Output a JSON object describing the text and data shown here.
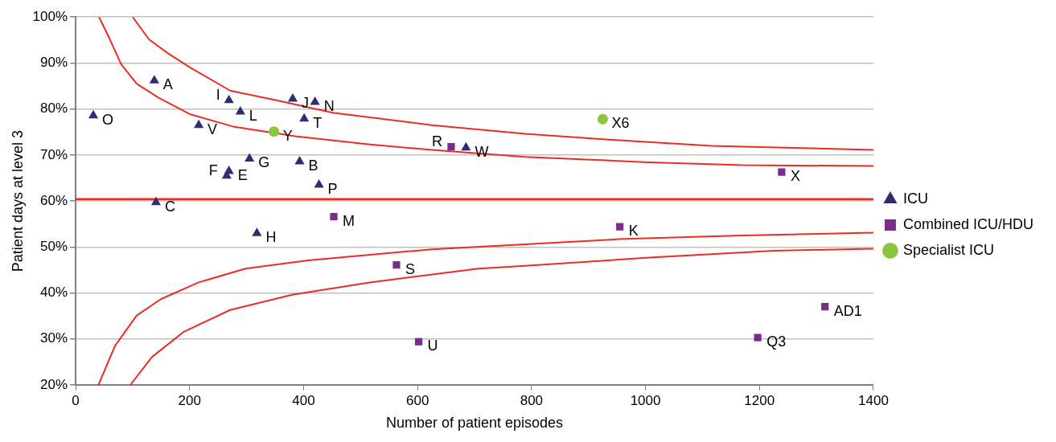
{
  "chart_data": {
    "type": "scatter",
    "xlabel": "Number of patient episodes",
    "ylabel": "Patient days at level 3",
    "xlim": [
      0,
      1400
    ],
    "xticks": [
      0,
      200,
      400,
      600,
      800,
      1000,
      1200,
      1400
    ],
    "ylim": [
      20,
      100
    ],
    "yticks": [
      {
        "value": 20,
        "label": "20%"
      },
      {
        "value": 30,
        "label": "30%"
      },
      {
        "value": 40,
        "label": "40%"
      },
      {
        "value": 50,
        "label": "50%"
      },
      {
        "value": 60,
        "label": "60%"
      },
      {
        "value": 70,
        "label": "70%"
      },
      {
        "value": 80,
        "label": "80%"
      },
      {
        "value": 90,
        "label": "90%"
      },
      {
        "value": 100,
        "label": "100%"
      }
    ],
    "grid": "y",
    "legend": "right",
    "series": [
      {
        "name": "ICU",
        "color": "#2e2d74",
        "marker": "triangle",
        "x": [
          138,
          31,
          269,
          289,
          381,
          420,
          401,
          216,
          305,
          393,
          269,
          265,
          427,
          141,
          318,
          685
        ],
        "values": [
          86.2,
          78.6,
          81.9,
          79.4,
          82.2,
          81.5,
          77.9,
          76.5,
          69.2,
          68.6,
          66.5,
          65.5,
          63.5,
          59.7,
          53,
          71.6
        ]
      },
      {
        "name": "Combined ICU/HDU",
        "color": "#7b2b8b",
        "marker": "square",
        "x": [
          659,
          453,
          563,
          602,
          1239,
          955,
          1315,
          1197
        ],
        "values": [
          71.8,
          56.6,
          46.1,
          29.4,
          66.3,
          54.4,
          37,
          30.3
        ]
      },
      {
        "name": "Specialist ICU",
        "color": "#8cc63f",
        "marker": "circle",
        "x": [
          348,
          925
        ],
        "values": [
          75.1,
          77.8
        ]
      },
      {
        "type": "line",
        "color": "#ee2b24",
        "marker": "none",
        "x": [
          100,
          129,
          162,
          200,
          271,
          352,
          451,
          625,
          789,
          953,
          1116,
          1400
        ],
        "values": [
          100,
          95.1,
          92.1,
          89.1,
          84,
          81.9,
          79.2,
          76.5,
          74.6,
          73.2,
          72,
          71.1
        ]
      },
      {
        "type": "line",
        "color": "#ee2b24",
        "marker": "none",
        "x": [
          41,
          58,
          80,
          107,
          145,
          200,
          276,
          385,
          516,
          625,
          789,
          1007,
          1171,
          1400
        ],
        "values": [
          100,
          95.7,
          89.7,
          85.5,
          82.5,
          78.9,
          76.2,
          74.1,
          72.3,
          71.1,
          69.6,
          68.4,
          67.8,
          67.6
        ]
      },
      {
        "type": "line",
        "color": "#ee2b24",
        "marker": "none",
        "x": [
          40,
          69,
          107,
          150,
          216,
          298,
          408,
          598,
          625,
          953,
          1171,
          1400
        ],
        "values": [
          20,
          28.5,
          35.1,
          38.7,
          42.3,
          45.3,
          47.1,
          49.2,
          49.5,
          51.7,
          52.5,
          53.1
        ]
      },
      {
        "type": "line",
        "color": "#ee2b24",
        "marker": "none",
        "x": [
          96,
          134,
          189,
          271,
          380,
          516,
          707,
          789,
          1007,
          1225,
          1400
        ],
        "values": [
          20,
          26.1,
          31.5,
          36.3,
          39.6,
          42.3,
          45.3,
          45.9,
          47.7,
          49.2,
          49.6
        ]
      }
    ],
    "ref_lines": [
      {
        "axis": "y",
        "value": 60.4,
        "color": "#ee2b24"
      }
    ],
    "annotations": [
      {
        "text": "A",
        "x": 138,
        "y": 86.2
      },
      {
        "text": "O",
        "x": 31,
        "y": 78.6
      },
      {
        "text": "I",
        "x": 269,
        "y": 81.9
      },
      {
        "text": "L",
        "x": 289,
        "y": 79.4
      },
      {
        "text": "J",
        "x": 381,
        "y": 82.2
      },
      {
        "text": "N",
        "x": 420,
        "y": 81.5
      },
      {
        "text": "T",
        "x": 401,
        "y": 77.9
      },
      {
        "text": "V",
        "x": 216,
        "y": 76.5
      },
      {
        "text": "G",
        "x": 305,
        "y": 69.2
      },
      {
        "text": "B",
        "x": 393,
        "y": 68.6
      },
      {
        "text": "E",
        "x": 269,
        "y": 66.5
      },
      {
        "text": "F",
        "x": 265,
        "y": 65.5
      },
      {
        "text": "P",
        "x": 427,
        "y": 63.5
      },
      {
        "text": "C",
        "x": 141,
        "y": 59.7
      },
      {
        "text": "H",
        "x": 318,
        "y": 53
      },
      {
        "text": "W",
        "x": 685,
        "y": 71.6
      },
      {
        "text": "R",
        "x": 659,
        "y": 71.8
      },
      {
        "text": "M",
        "x": 453,
        "y": 56.6
      },
      {
        "text": "S",
        "x": 563,
        "y": 46.1
      },
      {
        "text": "U",
        "x": 602,
        "y": 29.4
      },
      {
        "text": "X",
        "x": 1239,
        "y": 66.3
      },
      {
        "text": "K",
        "x": 955,
        "y": 54.4
      },
      {
        "text": "AD1",
        "x": 1315,
        "y": 37
      },
      {
        "text": "Q3",
        "x": 1197,
        "y": 30.3
      },
      {
        "text": "Y",
        "x": 348,
        "y": 75.1
      },
      {
        "text": "X6",
        "x": 925,
        "y": 77.8
      }
    ]
  }
}
